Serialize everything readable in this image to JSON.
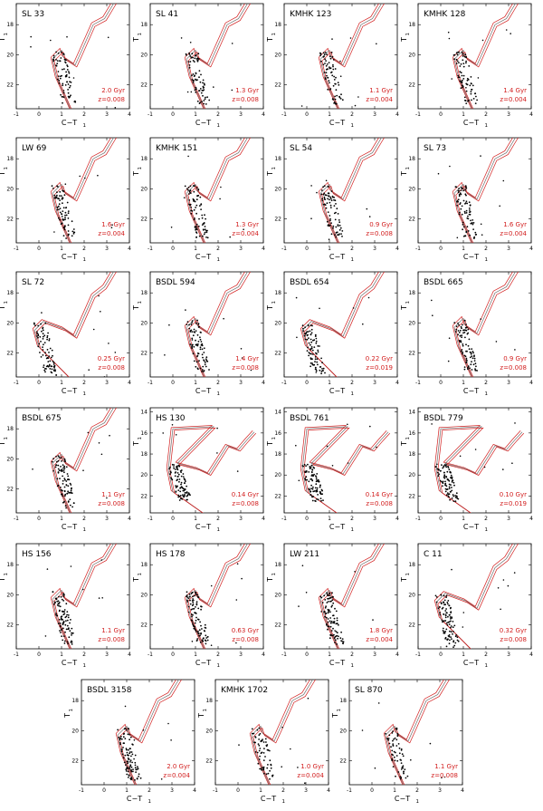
{
  "figure": {
    "axis_labels": {
      "x": "C−T",
      "x_sub": "1",
      "y": "T",
      "y_sub": "1"
    },
    "colors": {
      "isochrone": "#d21e1e",
      "isochrone_alt": "#6e6e6e",
      "stars": "#000000",
      "annotation": "#d21e1e"
    },
    "common_axes": {
      "x_ticks": [
        "-1",
        "0",
        "1",
        "2",
        "3",
        "4"
      ],
      "y_ticks_default": [
        "18",
        "20",
        "22"
      ],
      "y_ticks_extended": [
        "14",
        "16",
        "18",
        "20",
        "22"
      ]
    },
    "panels": [
      {
        "name": "SL 33",
        "age": "2.0 Gyr",
        "z": "z=0.008",
        "yticks": "default"
      },
      {
        "name": "SL 41",
        "age": "1.3 Gyr",
        "z": "z=0.008",
        "yticks": "default"
      },
      {
        "name": "KMHK 123",
        "age": "1.1 Gyr",
        "z": "z=0.004",
        "yticks": "default"
      },
      {
        "name": "KMHK 128",
        "age": "1.4 Gyr",
        "z": "z=0.004",
        "yticks": "default"
      },
      {
        "name": "LW 69",
        "age": "1.6 Gyr",
        "z": "z=0.004",
        "yticks": "default"
      },
      {
        "name": "KMHK 151",
        "age": "1.3 Gyr",
        "z": "z=0.004",
        "yticks": "default"
      },
      {
        "name": "SL 54",
        "age": "0.9 Gyr",
        "z": "z=0.008",
        "yticks": "default"
      },
      {
        "name": "SL 73",
        "age": "1.6 Gyr",
        "z": "z=0.004",
        "yticks": "default"
      },
      {
        "name": "SL 72",
        "age": "0.25 Gyr",
        "z": "z=0.008",
        "yticks": "default"
      },
      {
        "name": "BSDL 594",
        "age": "1.4 Gyr",
        "z": "z=0.008",
        "yticks": "default"
      },
      {
        "name": "BSDL 654",
        "age": "0.22 Gyr",
        "z": "z=0.019",
        "yticks": "default"
      },
      {
        "name": "BSDL 665",
        "age": "0.9 Gyr",
        "z": "z=0.008",
        "yticks": "default"
      },
      {
        "name": "BSDL 675",
        "age": "1.1 Gyr",
        "z": "z=0.008",
        "yticks": "default"
      },
      {
        "name": "HS 130",
        "age": "0.14 Gyr",
        "z": "z=0.008",
        "yticks": "extended"
      },
      {
        "name": "BSDL 761",
        "age": "0.14 Gyr",
        "z": "z=0.008",
        "yticks": "extended"
      },
      {
        "name": "BSDL 779",
        "age": "0.10 Gyr",
        "z": "z=0.019",
        "yticks": "extended"
      },
      {
        "name": "HS 156",
        "age": "1.1 Gyr",
        "z": "z=0.008",
        "yticks": "default"
      },
      {
        "name": "HS 178",
        "age": "0.63 Gyr",
        "z": "z=0.008",
        "yticks": "default"
      },
      {
        "name": "LW 211",
        "age": "1.8 Gyr",
        "z": "z=0.004",
        "yticks": "default"
      },
      {
        "name": "C 11",
        "age": "0.32 Gyr",
        "z": "z=0.008",
        "yticks": "default"
      },
      {
        "name": "BSDL 3158",
        "age": "2.0 Gyr",
        "z": "z=0.004",
        "yticks": "default"
      },
      {
        "name": "KMHK 1702",
        "age": "1.0 Gyr",
        "z": "z=0.004",
        "yticks": "default"
      },
      {
        "name": "SL 870",
        "age": "1.1 Gyr",
        "z": "z=0.008",
        "yticks": "default"
      }
    ]
  }
}
